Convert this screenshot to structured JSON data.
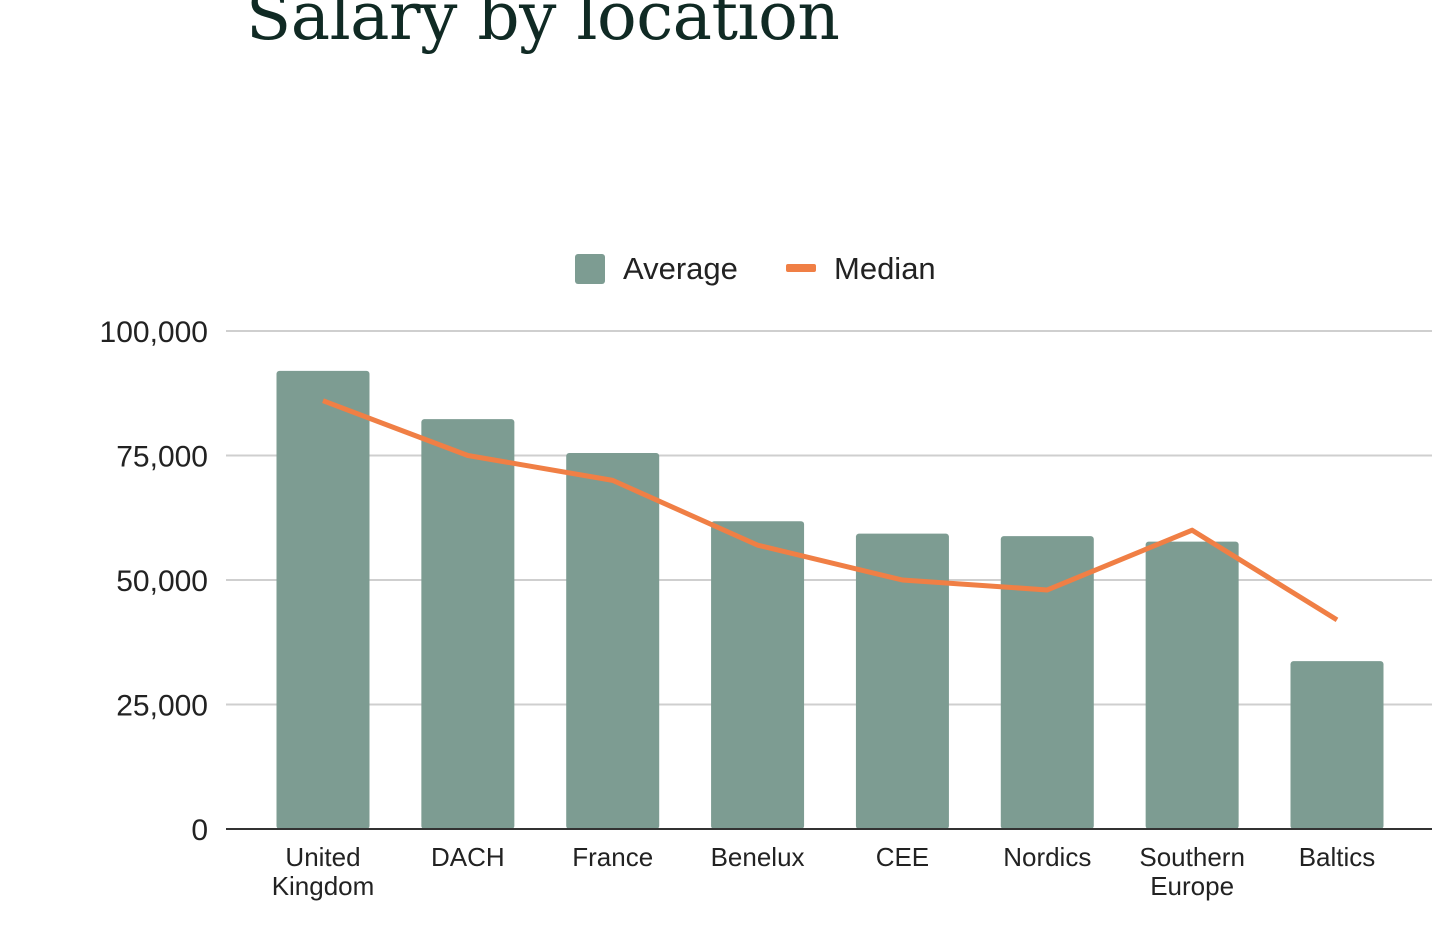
{
  "page": {
    "title": "Salary by location"
  },
  "chart_data": {
    "type": "bar",
    "title": "Salary by location",
    "xlabel": "",
    "ylabel": "",
    "ylim": [
      0,
      100000
    ],
    "yticks": [
      0,
      25000,
      50000,
      75000,
      100000
    ],
    "ytick_labels": [
      "0",
      "25,000",
      "50,000",
      "75,000",
      "100,000"
    ],
    "grid": true,
    "legend_position": "top-center",
    "categories": [
      [
        "United",
        "Kingdom"
      ],
      [
        "DACH"
      ],
      [
        "France"
      ],
      [
        "Benelux"
      ],
      [
        "CEE"
      ],
      [
        "Nordics"
      ],
      [
        "Southern",
        "Europe"
      ],
      [
        "Baltics"
      ]
    ],
    "series": [
      {
        "name": "Average",
        "type": "bar",
        "color": "#7d9c92",
        "values": [
          92000,
          82300,
          75500,
          61800,
          59300,
          58800,
          57700,
          33700
        ]
      },
      {
        "name": "Median",
        "type": "line",
        "color": "#f07f45",
        "values": [
          86000,
          75000,
          70000,
          57000,
          50000,
          48000,
          60000,
          42000
        ]
      }
    ]
  }
}
